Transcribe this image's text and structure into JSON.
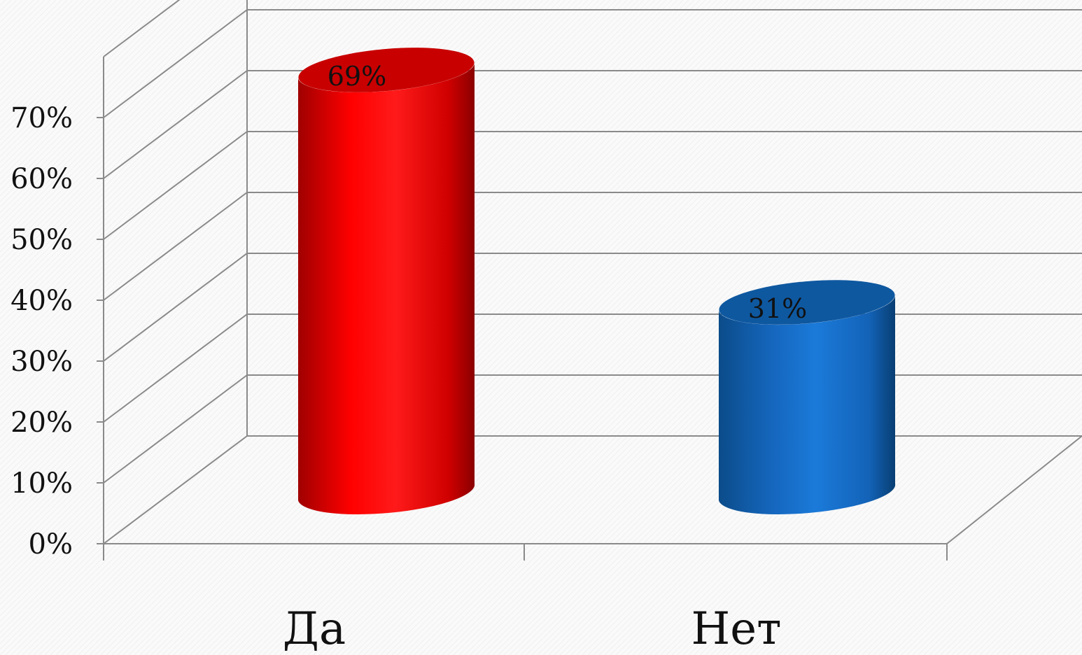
{
  "chart_data": {
    "type": "bar",
    "style": "3d-cylinder",
    "title": "",
    "xlabel": "",
    "ylabel": "",
    "categories": [
      "Да",
      "Нет"
    ],
    "values": [
      69,
      31
    ],
    "data_labels": [
      "69%",
      "31%"
    ],
    "colors": [
      "#ff0000",
      "#1f77d4"
    ],
    "ylim": [
      0,
      80
    ],
    "yticks": [
      0,
      10,
      20,
      30,
      40,
      50,
      60,
      70
    ],
    "ytick_labels": [
      "0%",
      "10%",
      "20%",
      "30%",
      "40%",
      "50%",
      "60%",
      "70%"
    ],
    "grid": true,
    "legend": "none"
  }
}
